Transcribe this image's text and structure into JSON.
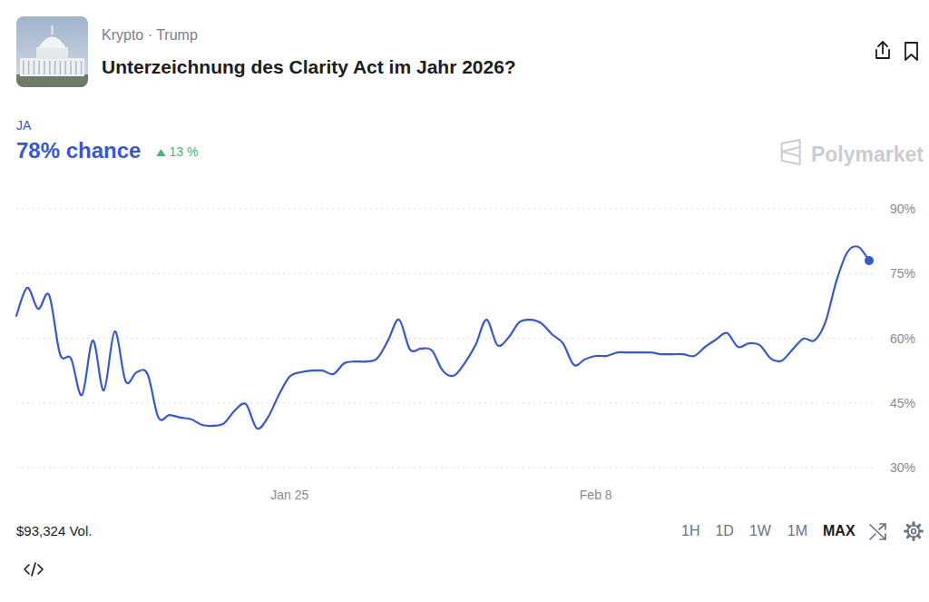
{
  "header": {
    "breadcrumb": "Krypto · Trump",
    "title": "Unterzeichnung des Clarity Act im Jahr 2026?",
    "chance": "78% chance",
    "change": "13 %",
    "brand": "Polymarket"
  },
  "footer": {
    "volume": "$93,324 Vol.",
    "ranges": [
      "1H",
      "1D",
      "1W",
      "1M",
      "MAX"
    ]
  },
  "chart_data": {
    "type": "line",
    "categories": [
      null,
      null,
      null,
      null,
      null,
      null,
      null,
      null,
      null,
      null,
      null,
      null,
      null,
      null,
      null,
      null,
      null,
      null,
      null,
      null,
      null,
      null,
      null,
      null,
      null,
      "Jan 25",
      null,
      null,
      null,
      null,
      null,
      null,
      null,
      null,
      null,
      null,
      null,
      null,
      null,
      null,
      null,
      null,
      null,
      null,
      null,
      null,
      null,
      null,
      null,
      null,
      null,
      null,
      null,
      "Feb 8",
      null,
      null,
      null,
      null,
      null,
      null,
      null,
      null,
      null,
      null,
      null,
      null,
      null,
      null,
      null,
      null,
      null,
      null,
      null,
      null,
      null,
      null,
      null,
      null,
      null
    ],
    "series": [
      {
        "name": "JA",
        "color": "#3557d8",
        "values": [
          65.2,
          71.7,
          66.8,
          70,
          56.3,
          55.3,
          46.8,
          59.5,
          47.9,
          61.6,
          50,
          52.1,
          51.7,
          41.6,
          42.2,
          41.6,
          41.2,
          39.9,
          39.7,
          40.3,
          43.3,
          44.7,
          39.1,
          41.6,
          46.8,
          51.1,
          52.1,
          52.5,
          52.5,
          51.7,
          54.2,
          54.6,
          54.6,
          55.3,
          59.5,
          64.3,
          57.4,
          57.6,
          57.2,
          52.5,
          51.3,
          54.2,
          58.4,
          64.3,
          58.4,
          60.1,
          63.7,
          64.3,
          63.5,
          60.9,
          58.8,
          53.8,
          55.1,
          55.9,
          55.9,
          56.7,
          56.7,
          56.7,
          56.7,
          56.3,
          56.3,
          56.3,
          55.9,
          58,
          59.7,
          61.2,
          58,
          58.8,
          58.4,
          55.3,
          54.8,
          57.4,
          59.9,
          59.5,
          63.7,
          73.2,
          79.9,
          81.2,
          78
        ]
      }
    ],
    "ylim": [
      30,
      90
    ],
    "yticks": [
      {
        "value": 30,
        "label": "30%"
      },
      {
        "value": 45,
        "label": "45%"
      },
      {
        "value": 60,
        "label": "60%"
      },
      {
        "value": 75,
        "label": "75%"
      },
      {
        "value": 90,
        "label": "90%"
      }
    ],
    "grid": true
  }
}
